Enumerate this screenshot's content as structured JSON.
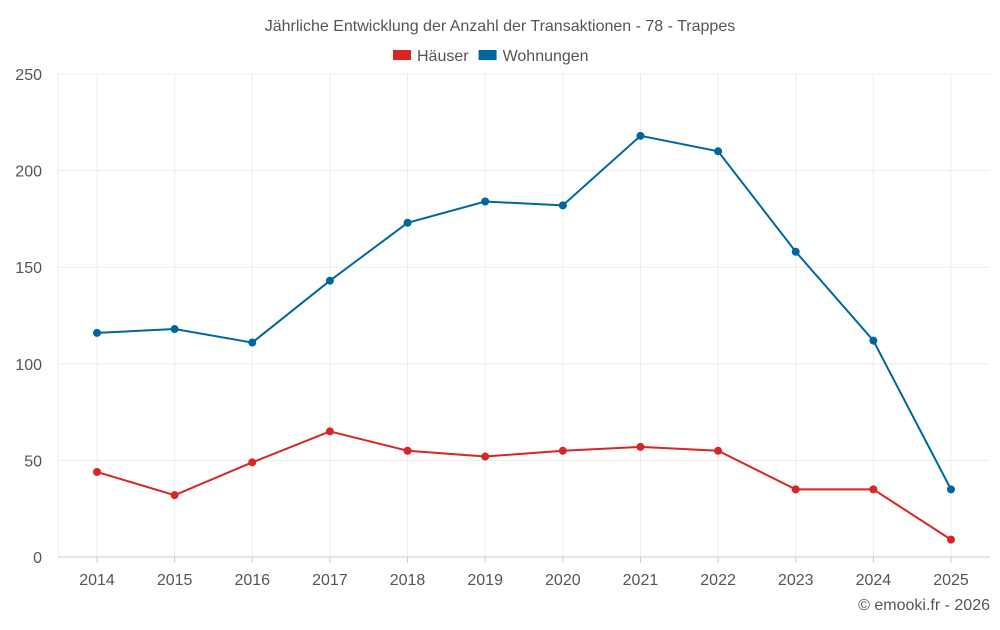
{
  "chart_data": {
    "type": "line",
    "title": "Jährliche Entwicklung der Anzahl der Transaktionen - 78 - Trappes",
    "xlabel": "",
    "ylabel": "",
    "categories": [
      "2014",
      "2015",
      "2016",
      "2017",
      "2018",
      "2019",
      "2020",
      "2021",
      "2022",
      "2023",
      "2024",
      "2025"
    ],
    "ylim": [
      0,
      250
    ],
    "yticks": [
      0,
      50,
      100,
      150,
      200,
      250
    ],
    "grid": true,
    "legend_position": "top-center",
    "series": [
      {
        "name": "Häuser",
        "color": "#d82626",
        "values": [
          44,
          32,
          49,
          65,
          55,
          52,
          55,
          57,
          55,
          35,
          35,
          9
        ]
      },
      {
        "name": "Wohnungen",
        "color": "#00679e",
        "values": [
          116,
          118,
          111,
          143,
          173,
          184,
          182,
          218,
          210,
          158,
          112,
          35
        ]
      }
    ]
  },
  "footer": {
    "copyright": "© emooki.fr - 2026"
  }
}
